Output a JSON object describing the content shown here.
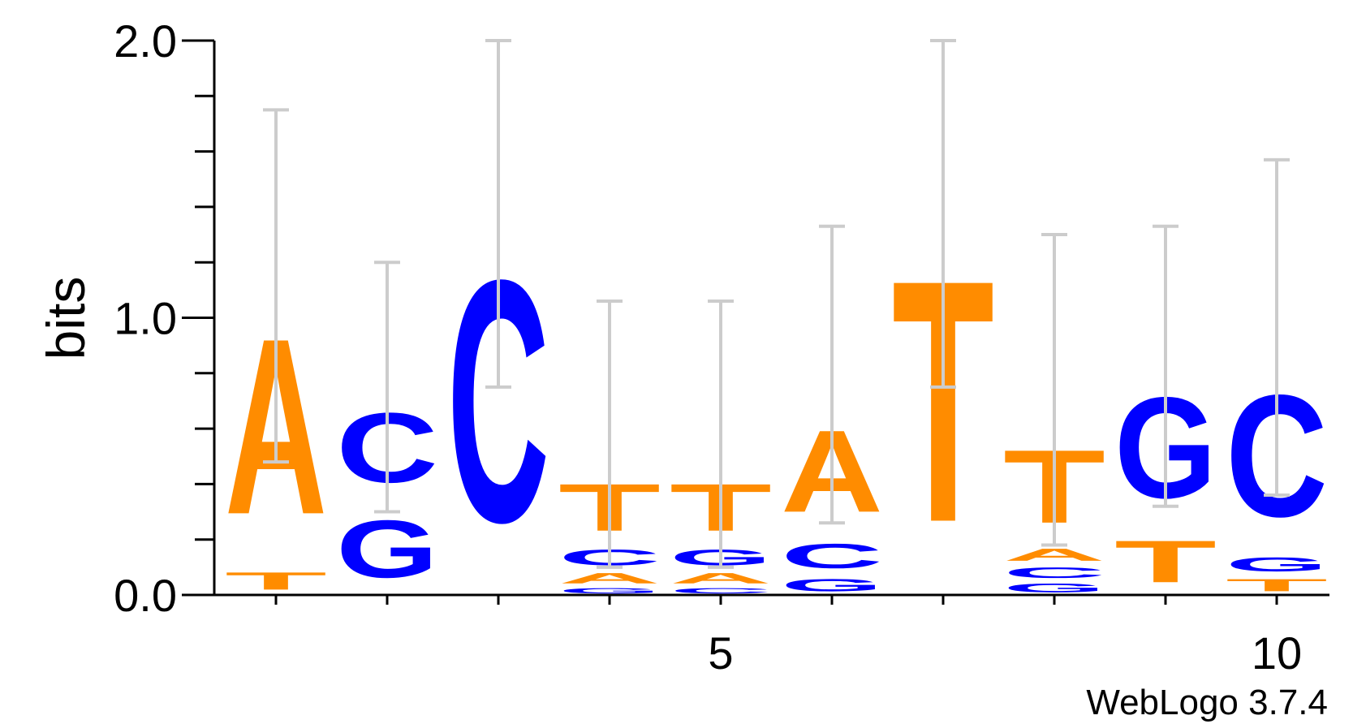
{
  "chart_data": {
    "type": "sequence-logo",
    "ylabel": "bits",
    "ylim": [
      0,
      2
    ],
    "yticks": [
      "0.0",
      "1.0",
      "2.0"
    ],
    "xticks": [
      "5",
      "10"
    ],
    "footer": "WebLogo 3.7.4",
    "colors": {
      "A": "#ff8c00",
      "T": "#ff8c00",
      "C": "#0000ff",
      "G": "#0000ff"
    },
    "positions": [
      {
        "pos": 1,
        "error": [
          0.48,
          1.75
        ],
        "stack": [
          {
            "letter": "T",
            "bits": 0.1
          },
          {
            "letter": "A",
            "bits": 1.01
          }
        ]
      },
      {
        "pos": 2,
        "error": [
          0.3,
          1.2
        ],
        "stack": [
          {
            "letter": "G",
            "bits": 0.33
          },
          {
            "letter": "C",
            "bits": 0.4
          }
        ]
      },
      {
        "pos": 3,
        "error": [
          0.75,
          2.0
        ],
        "stack": [
          {
            "letter": "C",
            "bits": 1.39
          }
        ]
      },
      {
        "pos": 4,
        "error": [
          0.1,
          1.06
        ],
        "stack": [
          {
            "letter": "G",
            "bits": 0.03
          },
          {
            "letter": "A",
            "bits": 0.06
          },
          {
            "letter": "C",
            "bits": 0.09
          },
          {
            "letter": "T",
            "bits": 0.27
          }
        ]
      },
      {
        "pos": 5,
        "error": [
          0.1,
          1.06
        ],
        "stack": [
          {
            "letter": "C",
            "bits": 0.03
          },
          {
            "letter": "A",
            "bits": 0.06
          },
          {
            "letter": "G",
            "bits": 0.09
          },
          {
            "letter": "T",
            "bits": 0.27
          }
        ]
      },
      {
        "pos": 6,
        "error": [
          0.26,
          1.33
        ],
        "stack": [
          {
            "letter": "G",
            "bits": 0.07
          },
          {
            "letter": "C",
            "bits": 0.14
          },
          {
            "letter": "A",
            "bits": 0.47
          }
        ]
      },
      {
        "pos": 7,
        "error": [
          0.75,
          2.0
        ],
        "stack": [
          {
            "letter": "T",
            "bits": 1.39
          }
        ]
      },
      {
        "pos": 8,
        "error": [
          0.18,
          1.3
        ],
        "stack": [
          {
            "letter": "G",
            "bits": 0.05
          },
          {
            "letter": "C",
            "bits": 0.06
          },
          {
            "letter": "A",
            "bits": 0.07
          },
          {
            "letter": "T",
            "bits": 0.42
          }
        ]
      },
      {
        "pos": 9,
        "error": [
          0.32,
          1.33
        ],
        "stack": [
          {
            "letter": "T",
            "bits": 0.24
          },
          {
            "letter": "G",
            "bits": 0.58
          }
        ]
      },
      {
        "pos": 10,
        "error": [
          0.36,
          1.57
        ],
        "stack": [
          {
            "letter": "T",
            "bits": 0.07
          },
          {
            "letter": "G",
            "bits": 0.08
          },
          {
            "letter": "C",
            "bits": 0.7
          }
        ]
      }
    ]
  }
}
